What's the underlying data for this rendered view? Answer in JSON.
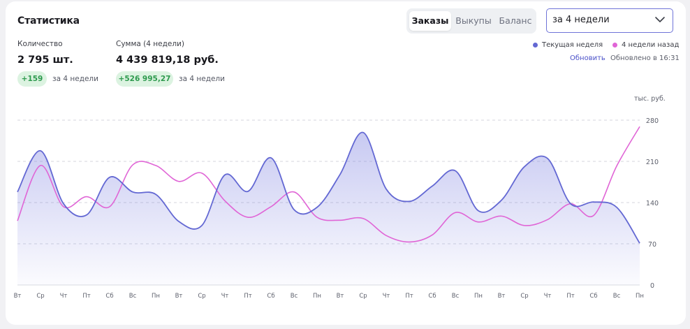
{
  "header": {
    "title": "Статистика"
  },
  "tabs": [
    {
      "label": "Заказы",
      "active": true
    },
    {
      "label": "Выкупы",
      "active": false
    },
    {
      "label": "Баланс",
      "active": false
    }
  ],
  "period_select": {
    "value": "за 4 недели"
  },
  "stats": {
    "quantity": {
      "label": "Количество",
      "value": "2 795 шт.",
      "delta": "+159",
      "note": "за 4 недели"
    },
    "sum": {
      "label": "Сумма (4 недели)",
      "value": "4 439 819,18 руб.",
      "delta": "+526 995,27",
      "note": "за 4 недели"
    }
  },
  "refresh": {
    "link_label": "Обновить",
    "updated_text": "Обновлено в 16:31"
  },
  "colors": {
    "current": "#6368d3",
    "previous": "#e065d6",
    "delta_bg": "#dcf3e1",
    "delta_text": "#2e9a4e"
  },
  "chart_data": {
    "type": "area",
    "unit_label": "тыс. руб.",
    "categories": [
      "Вт",
      "Ср",
      "Чт",
      "Пт",
      "Сб",
      "Вс",
      "Пн",
      "Вт",
      "Ср",
      "Чт",
      "Пт",
      "Сб",
      "Вс",
      "Пн",
      "Вт",
      "Ср",
      "Чт",
      "Пт",
      "Сб",
      "Вс",
      "Пн",
      "Вт",
      "Ср",
      "Чт",
      "Пт",
      "Сб",
      "Вс",
      "Пн"
    ],
    "yticks": [
      0,
      70,
      140,
      210,
      280
    ],
    "ylim": [
      0,
      280
    ],
    "grid": true,
    "legend_position": "top-right",
    "series": [
      {
        "name": "Текущая неделя",
        "values": [
          158,
          228,
          138,
          119,
          183,
          158,
          154,
          108,
          101,
          187,
          159,
          216,
          128,
          132,
          188,
          259,
          163,
          142,
          168,
          194,
          126,
          144,
          201,
          215,
          138,
          141,
          132,
          71
        ]
      },
      {
        "name": "4 недели назад",
        "values": [
          109,
          203,
          133,
          150,
          133,
          204,
          203,
          176,
          190,
          143,
          115,
          133,
          158,
          115,
          110,
          113,
          84,
          73,
          85,
          123,
          107,
          117,
          101,
          111,
          138,
          118,
          202,
          269
        ]
      }
    ]
  }
}
